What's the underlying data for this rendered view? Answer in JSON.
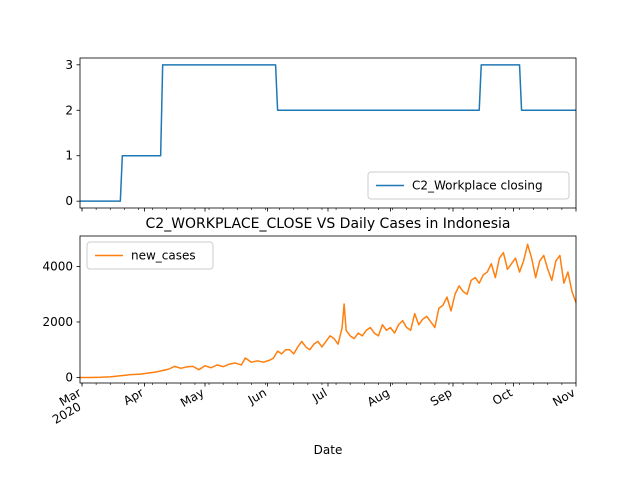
{
  "chart_data": [
    {
      "type": "line",
      "title": "",
      "xlabel": "",
      "ylabel": "",
      "ylim": [
        -0.15,
        3.15
      ],
      "yticks": [
        0,
        1,
        2,
        3
      ],
      "legend": {
        "position": "lower-right"
      },
      "grid": false,
      "series": [
        {
          "name": "C2_Workplace closing",
          "color": "#1f77b4",
          "points": [
            [
              "2020-02-29",
              0
            ],
            [
              "2020-03-20",
              0
            ],
            [
              "2020-03-21",
              1
            ],
            [
              "2020-04-09",
              1
            ],
            [
              "2020-04-10",
              3
            ],
            [
              "2020-06-05",
              3
            ],
            [
              "2020-06-06",
              2
            ],
            [
              "2020-09-14",
              2
            ],
            [
              "2020-09-15",
              3
            ],
            [
              "2020-10-04",
              3
            ],
            [
              "2020-10-05",
              2
            ],
            [
              "2020-11-01",
              2
            ]
          ]
        }
      ]
    },
    {
      "type": "line",
      "title": "C2_WORKPLACE_CLOSE VS Daily Cases in Indonesia",
      "xlabel": "Date",
      "ylabel": "",
      "ylim": [
        -200,
        5100
      ],
      "yticks": [
        0,
        2000,
        4000
      ],
      "xlim": [
        "2020-02-29",
        "2020-11-01"
      ],
      "xticks": [
        {
          "date": "2020-03-01",
          "label": "Mar",
          "sublabel": "2020"
        },
        {
          "date": "2020-04-01",
          "label": "Apr"
        },
        {
          "date": "2020-05-01",
          "label": "May"
        },
        {
          "date": "2020-06-01",
          "label": "Jun"
        },
        {
          "date": "2020-07-01",
          "label": "Jul"
        },
        {
          "date": "2020-08-01",
          "label": "Aug"
        },
        {
          "date": "2020-09-01",
          "label": "Sep"
        },
        {
          "date": "2020-10-01",
          "label": "Oct"
        },
        {
          "date": "2020-11-01",
          "label": "Nov"
        }
      ],
      "legend": {
        "position": "upper-left"
      },
      "grid": false,
      "series": [
        {
          "name": "new_cases",
          "color": "#ff7f0e",
          "points": [
            [
              "2020-02-29",
              0
            ],
            [
              "2020-03-05",
              0
            ],
            [
              "2020-03-10",
              5
            ],
            [
              "2020-03-15",
              20
            ],
            [
              "2020-03-20",
              60
            ],
            [
              "2020-03-25",
              100
            ],
            [
              "2020-03-30",
              120
            ],
            [
              "2020-04-03",
              160
            ],
            [
              "2020-04-07",
              200
            ],
            [
              "2020-04-10",
              250
            ],
            [
              "2020-04-13",
              300
            ],
            [
              "2020-04-16",
              400
            ],
            [
              "2020-04-19",
              330
            ],
            [
              "2020-04-22",
              380
            ],
            [
              "2020-04-25",
              400
            ],
            [
              "2020-04-28",
              280
            ],
            [
              "2020-05-01",
              420
            ],
            [
              "2020-05-04",
              350
            ],
            [
              "2020-05-07",
              450
            ],
            [
              "2020-05-10",
              390
            ],
            [
              "2020-05-13",
              480
            ],
            [
              "2020-05-16",
              520
            ],
            [
              "2020-05-19",
              450
            ],
            [
              "2020-05-21",
              700
            ],
            [
              "2020-05-24",
              550
            ],
            [
              "2020-05-27",
              600
            ],
            [
              "2020-05-30",
              550
            ],
            [
              "2020-06-02",
              620
            ],
            [
              "2020-06-04",
              700
            ],
            [
              "2020-06-06",
              950
            ],
            [
              "2020-06-08",
              850
            ],
            [
              "2020-06-10",
              1000
            ],
            [
              "2020-06-12",
              1000
            ],
            [
              "2020-06-14",
              850
            ],
            [
              "2020-06-16",
              1100
            ],
            [
              "2020-06-18",
              1300
            ],
            [
              "2020-06-20",
              1100
            ],
            [
              "2020-06-22",
              1000
            ],
            [
              "2020-06-24",
              1200
            ],
            [
              "2020-06-26",
              1300
            ],
            [
              "2020-06-28",
              1100
            ],
            [
              "2020-06-30",
              1300
            ],
            [
              "2020-07-02",
              1500
            ],
            [
              "2020-07-04",
              1400
            ],
            [
              "2020-07-06",
              1200
            ],
            [
              "2020-07-08",
              1800
            ],
            [
              "2020-07-09",
              2650
            ],
            [
              "2020-07-10",
              1700
            ],
            [
              "2020-07-12",
              1500
            ],
            [
              "2020-07-14",
              1400
            ],
            [
              "2020-07-16",
              1600
            ],
            [
              "2020-07-18",
              1500
            ],
            [
              "2020-07-20",
              1700
            ],
            [
              "2020-07-22",
              1800
            ],
            [
              "2020-07-24",
              1600
            ],
            [
              "2020-07-26",
              1500
            ],
            [
              "2020-07-28",
              1900
            ],
            [
              "2020-07-30",
              1700
            ],
            [
              "2020-08-01",
              1800
            ],
            [
              "2020-08-03",
              1600
            ],
            [
              "2020-08-05",
              1900
            ],
            [
              "2020-08-07",
              2050
            ],
            [
              "2020-08-09",
              1800
            ],
            [
              "2020-08-11",
              1700
            ],
            [
              "2020-08-13",
              2300
            ],
            [
              "2020-08-15",
              1900
            ],
            [
              "2020-08-17",
              2100
            ],
            [
              "2020-08-19",
              2200
            ],
            [
              "2020-08-21",
              2000
            ],
            [
              "2020-08-23",
              1800
            ],
            [
              "2020-08-25",
              2500
            ],
            [
              "2020-08-27",
              2600
            ],
            [
              "2020-08-29",
              2900
            ],
            [
              "2020-08-31",
              2400
            ],
            [
              "2020-09-02",
              3000
            ],
            [
              "2020-09-04",
              3300
            ],
            [
              "2020-09-06",
              3100
            ],
            [
              "2020-09-08",
              3000
            ],
            [
              "2020-09-10",
              3500
            ],
            [
              "2020-09-12",
              3600
            ],
            [
              "2020-09-14",
              3400
            ],
            [
              "2020-09-16",
              3700
            ],
            [
              "2020-09-18",
              3800
            ],
            [
              "2020-09-20",
              4100
            ],
            [
              "2020-09-22",
              3600
            ],
            [
              "2020-09-24",
              4300
            ],
            [
              "2020-09-26",
              4500
            ],
            [
              "2020-09-28",
              3900
            ],
            [
              "2020-09-30",
              4100
            ],
            [
              "2020-10-02",
              4300
            ],
            [
              "2020-10-04",
              3800
            ],
            [
              "2020-10-06",
              4200
            ],
            [
              "2020-10-08",
              4800
            ],
            [
              "2020-10-10",
              4300
            ],
            [
              "2020-10-12",
              3600
            ],
            [
              "2020-10-14",
              4200
            ],
            [
              "2020-10-16",
              4400
            ],
            [
              "2020-10-18",
              3900
            ],
            [
              "2020-10-20",
              3500
            ],
            [
              "2020-10-22",
              4200
            ],
            [
              "2020-10-24",
              4400
            ],
            [
              "2020-10-26",
              3400
            ],
            [
              "2020-10-28",
              3800
            ],
            [
              "2020-10-30",
              3100
            ],
            [
              "2020-11-01",
              2700
            ]
          ]
        }
      ]
    }
  ]
}
